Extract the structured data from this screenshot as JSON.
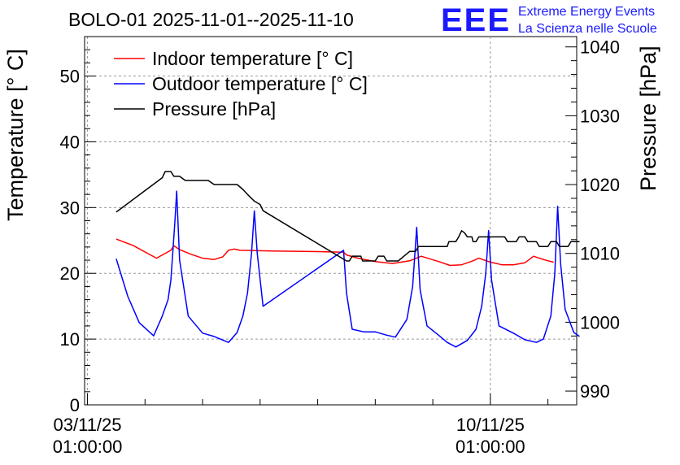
{
  "title": "BOLO-01 2025-11-01--2025-11-10",
  "logo": {
    "mark": "EEE",
    "line1": "Extreme Energy Events",
    "line2": "La Scienza nelle Scuole",
    "color": "#1a1aff"
  },
  "chart_data": {
    "type": "line",
    "title": "BOLO-01 2025-11-01--2025-11-10",
    "xlabel": "",
    "ylabel": "Temperature [° C]",
    "y2label": "Pressure [hPa]",
    "xlim": [
      -0.05,
      8.5
    ],
    "ylim": [
      0,
      56
    ],
    "y2lim": [
      988,
      1041.5
    ],
    "grid": true,
    "legend_position": "top-left",
    "x_units": "days since 03/11/25 01:00:00",
    "x_ticks": [
      {
        "value": 0,
        "date": "03/11/25",
        "time": "01:00:00"
      },
      {
        "value": 7,
        "date": "10/11/25",
        "time": "01:00:00"
      }
    ],
    "y_ticks": [
      0,
      10,
      20,
      30,
      40,
      50
    ],
    "y2_ticks": [
      990,
      1000,
      1010,
      1020,
      1030,
      1040
    ],
    "series": [
      {
        "name": "Indoor temperature [° C]",
        "axis": "left",
        "color": "#ff0000",
        "points": [
          [
            0.5,
            25.2
          ],
          [
            0.8,
            24.2
          ],
          [
            1.05,
            23.0
          ],
          [
            1.2,
            22.3
          ],
          [
            1.3,
            22.8
          ],
          [
            1.45,
            23.5
          ],
          [
            1.5,
            24.2
          ],
          [
            1.6,
            23.6
          ],
          [
            1.8,
            22.9
          ],
          [
            2.0,
            22.3
          ],
          [
            2.2,
            22.1
          ],
          [
            2.35,
            22.5
          ],
          [
            2.45,
            23.5
          ],
          [
            2.55,
            23.7
          ],
          [
            2.65,
            23.5
          ],
          [
            3.2,
            23.4
          ],
          [
            4.0,
            23.3
          ],
          [
            4.45,
            23.2
          ],
          [
            4.5,
            22.8
          ],
          [
            4.7,
            22.3
          ],
          [
            5.0,
            21.8
          ],
          [
            5.3,
            21.5
          ],
          [
            5.6,
            21.9
          ],
          [
            5.8,
            22.6
          ],
          [
            6.1,
            21.8
          ],
          [
            6.3,
            21.2
          ],
          [
            6.5,
            21.3
          ],
          [
            6.7,
            21.9
          ],
          [
            6.8,
            22.3
          ],
          [
            7.0,
            21.7
          ],
          [
            7.2,
            21.3
          ],
          [
            7.4,
            21.3
          ],
          [
            7.6,
            21.6
          ],
          [
            7.75,
            22.6
          ],
          [
            7.85,
            22.3
          ],
          [
            8.0,
            21.9
          ],
          [
            8.1,
            21.7
          ]
        ]
      },
      {
        "name": "Outdoor temperature [° C]",
        "axis": "left",
        "color": "#0000ff",
        "points": [
          [
            0.5,
            22.2
          ],
          [
            0.7,
            16.5
          ],
          [
            0.9,
            12.5
          ],
          [
            1.15,
            10.5
          ],
          [
            1.3,
            13.5
          ],
          [
            1.4,
            16.0
          ],
          [
            1.45,
            19.0
          ],
          [
            1.52,
            28.0
          ],
          [
            1.55,
            32.5
          ],
          [
            1.6,
            22.0
          ],
          [
            1.75,
            13.5
          ],
          [
            2.0,
            10.9
          ],
          [
            2.2,
            10.4
          ],
          [
            2.45,
            9.5
          ],
          [
            2.6,
            11.0
          ],
          [
            2.7,
            13.5
          ],
          [
            2.78,
            17.0
          ],
          [
            2.85,
            23.0
          ],
          [
            2.9,
            29.5
          ],
          [
            2.95,
            23.0
          ],
          [
            3.05,
            15.0
          ],
          [
            4.45,
            23.5
          ],
          [
            4.5,
            17.0
          ],
          [
            4.6,
            11.5
          ],
          [
            4.8,
            11.1
          ],
          [
            5.0,
            11.1
          ],
          [
            5.2,
            10.6
          ],
          [
            5.35,
            10.3
          ],
          [
            5.55,
            13.0
          ],
          [
            5.65,
            18.0
          ],
          [
            5.72,
            27.0
          ],
          [
            5.78,
            17.5
          ],
          [
            5.9,
            12.0
          ],
          [
            6.1,
            10.6
          ],
          [
            6.25,
            9.5
          ],
          [
            6.4,
            8.8
          ],
          [
            6.6,
            9.8
          ],
          [
            6.75,
            11.5
          ],
          [
            6.85,
            15.0
          ],
          [
            6.92,
            20.0
          ],
          [
            6.97,
            26.5
          ],
          [
            7.02,
            19.0
          ],
          [
            7.15,
            12.0
          ],
          [
            7.4,
            10.9
          ],
          [
            7.6,
            9.9
          ],
          [
            7.8,
            9.5
          ],
          [
            7.92,
            10.0
          ],
          [
            8.05,
            13.5
          ],
          [
            8.12,
            20.0
          ],
          [
            8.17,
            30.2
          ],
          [
            8.22,
            21.5
          ],
          [
            8.3,
            14.5
          ],
          [
            8.45,
            11.0
          ],
          [
            8.55,
            10.4
          ]
        ]
      },
      {
        "name": "Pressure [hPa]",
        "axis": "right",
        "color": "#000000",
        "points": [
          [
            0.5,
            1016.0
          ],
          [
            1.3,
            1021.0
          ],
          [
            1.35,
            1021.9
          ],
          [
            1.45,
            1021.9
          ],
          [
            1.5,
            1021.2
          ],
          [
            1.6,
            1021.2
          ],
          [
            1.7,
            1020.6
          ],
          [
            2.1,
            1020.6
          ],
          [
            2.2,
            1020.0
          ],
          [
            2.6,
            1020.0
          ],
          [
            2.7,
            1019.3
          ],
          [
            2.8,
            1018.4
          ],
          [
            2.9,
            1017.6
          ],
          [
            3.0,
            1017.1
          ],
          [
            3.05,
            1016.2
          ],
          [
            4.5,
            1008.9
          ],
          [
            4.55,
            1008.9
          ],
          [
            4.6,
            1009.6
          ],
          [
            4.75,
            1009.6
          ],
          [
            4.78,
            1008.9
          ],
          [
            5.0,
            1008.9
          ],
          [
            5.05,
            1009.6
          ],
          [
            5.15,
            1009.6
          ],
          [
            5.2,
            1008.9
          ],
          [
            5.4,
            1008.9
          ],
          [
            5.5,
            1009.6
          ],
          [
            5.6,
            1010.3
          ],
          [
            5.7,
            1010.3
          ],
          [
            5.75,
            1011.0
          ],
          [
            6.25,
            1011.0
          ],
          [
            6.28,
            1011.7
          ],
          [
            6.4,
            1011.7
          ],
          [
            6.45,
            1012.4
          ],
          [
            6.5,
            1013.3
          ],
          [
            6.55,
            1013.0
          ],
          [
            6.6,
            1012.4
          ],
          [
            6.68,
            1012.4
          ],
          [
            6.7,
            1011.7
          ],
          [
            6.75,
            1011.7
          ],
          [
            6.8,
            1012.4
          ],
          [
            7.25,
            1012.4
          ],
          [
            7.3,
            1011.7
          ],
          [
            7.45,
            1011.7
          ],
          [
            7.5,
            1012.4
          ],
          [
            7.6,
            1012.4
          ],
          [
            7.65,
            1011.7
          ],
          [
            7.8,
            1011.7
          ],
          [
            7.85,
            1011.0
          ],
          [
            8.0,
            1011.0
          ],
          [
            8.05,
            1011.7
          ],
          [
            8.15,
            1011.7
          ],
          [
            8.2,
            1011.0
          ],
          [
            8.35,
            1011.0
          ],
          [
            8.4,
            1011.7
          ],
          [
            8.55,
            1011.7
          ]
        ]
      }
    ]
  }
}
